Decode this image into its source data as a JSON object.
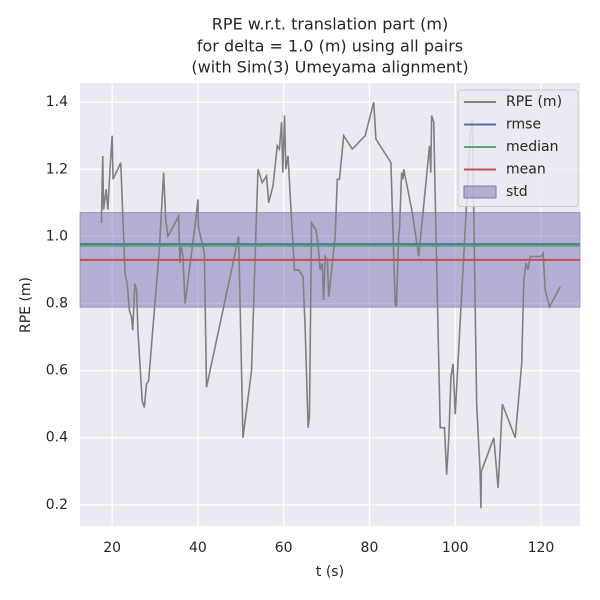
{
  "chart_data": {
    "type": "line",
    "title": [
      "RPE w.r.t. translation part (m)",
      "for delta = 1.0 (m) using all pairs",
      "(with Sim(3) Umeyama alignment)"
    ],
    "x_label": "t (s)",
    "y_label": "RPE (m)",
    "xlim": [
      12.5,
      129.1
    ],
    "ylim": [
      0.137,
      1.457
    ],
    "xticks": [
      20,
      40,
      60,
      80,
      100,
      120
    ],
    "yticks": [
      0.2,
      0.4,
      0.6,
      0.8,
      {
        "value": 1,
        "label": "1.0"
      },
      1.2,
      1.4
    ],
    "grid": true,
    "legend": "upper right",
    "x": [
      17.5,
      17.8,
      18.0,
      18.6,
      19.0,
      19.5,
      20.0,
      20.2,
      22,
      23,
      23.5,
      24,
      24.5,
      24.8,
      25.3,
      25.7,
      26,
      27,
      27.5,
      28,
      28.5,
      31,
      32,
      32.5,
      33,
      35.5,
      35.8,
      36,
      36.5,
      37,
      39.5,
      40,
      40.1,
      41.5,
      42,
      49.5,
      50.5,
      52.5,
      54,
      55,
      56,
      56.5,
      57.5,
      58.5,
      59,
      59.5,
      59.8,
      60.2,
      60.5,
      61,
      62.5,
      63.5,
      64.5,
      65,
      65.3,
      65.7,
      66,
      66.5,
      67.5,
      68,
      68.5,
      69,
      69.3,
      69.7,
      70.2,
      70.5,
      72,
      72.5,
      73,
      74,
      76,
      79,
      81,
      81.5,
      85,
      86,
      86.3,
      86.8,
      87,
      87.5,
      87.8,
      88,
      90,
      91.5,
      94,
      94.3,
      94.5,
      95,
      95.2,
      96,
      96.5,
      97.5,
      98,
      98.5,
      99,
      99.5,
      100,
      103.5,
      104,
      105,
      105.8,
      106,
      106.1,
      109,
      110,
      111,
      114,
      115.5,
      116,
      116.5,
      117,
      117.5,
      120,
      120.5,
      121,
      122,
      124.5
    ],
    "series": [
      {
        "name": "RPE (m)",
        "color": "#808080",
        "values": [
          1.04,
          1.24,
          1.08,
          1.14,
          1.08,
          1.2,
          1.3,
          1.17,
          1.22,
          0.89,
          0.86,
          0.78,
          0.76,
          0.72,
          0.86,
          0.84,
          0.72,
          0.51,
          0.49,
          0.56,
          0.57,
          0.96,
          1.19,
          1.05,
          1.0,
          1.06,
          0.92,
          0.98,
          0.94,
          0.8,
          1.05,
          1.11,
          1.03,
          0.95,
          0.55,
          1.0,
          0.4,
          0.6,
          1.2,
          1.16,
          1.18,
          1.1,
          1.15,
          1.27,
          1.26,
          1.34,
          1.19,
          1.36,
          1.2,
          1.24,
          0.9,
          0.9,
          0.88,
          0.73,
          0.6,
          0.43,
          0.46,
          1.04,
          1.02,
          0.98,
          0.9,
          0.92,
          0.81,
          0.94,
          0.93,
          0.82,
          1.0,
          1.17,
          1.17,
          1.3,
          1.26,
          1.3,
          1.4,
          1.29,
          1.22,
          0.8,
          0.79,
          1.0,
          1.02,
          1.19,
          1.17,
          1.2,
          1.07,
          0.94,
          1.27,
          1.19,
          1.36,
          1.34,
          1.2,
          0.72,
          0.43,
          0.43,
          0.29,
          0.4,
          0.58,
          0.62,
          0.47,
          1.3,
          1.35,
          0.5,
          0.3,
          0.19,
          0.3,
          0.4,
          0.25,
          0.5,
          0.4,
          0.62,
          0.87,
          0.92,
          0.9,
          0.94,
          0.94,
          0.95,
          0.84,
          0.79,
          0.85
        ]
      },
      {
        "name": "rmse",
        "color": "#4c72b0",
        "value": 0.977
      },
      {
        "name": "median",
        "color": "#55a868",
        "value": 0.972
      },
      {
        "name": "mean",
        "color": "#c44e52",
        "value": 0.93
      },
      {
        "name": "std",
        "color": "#8172b2",
        "value": 0.141
      }
    ]
  }
}
